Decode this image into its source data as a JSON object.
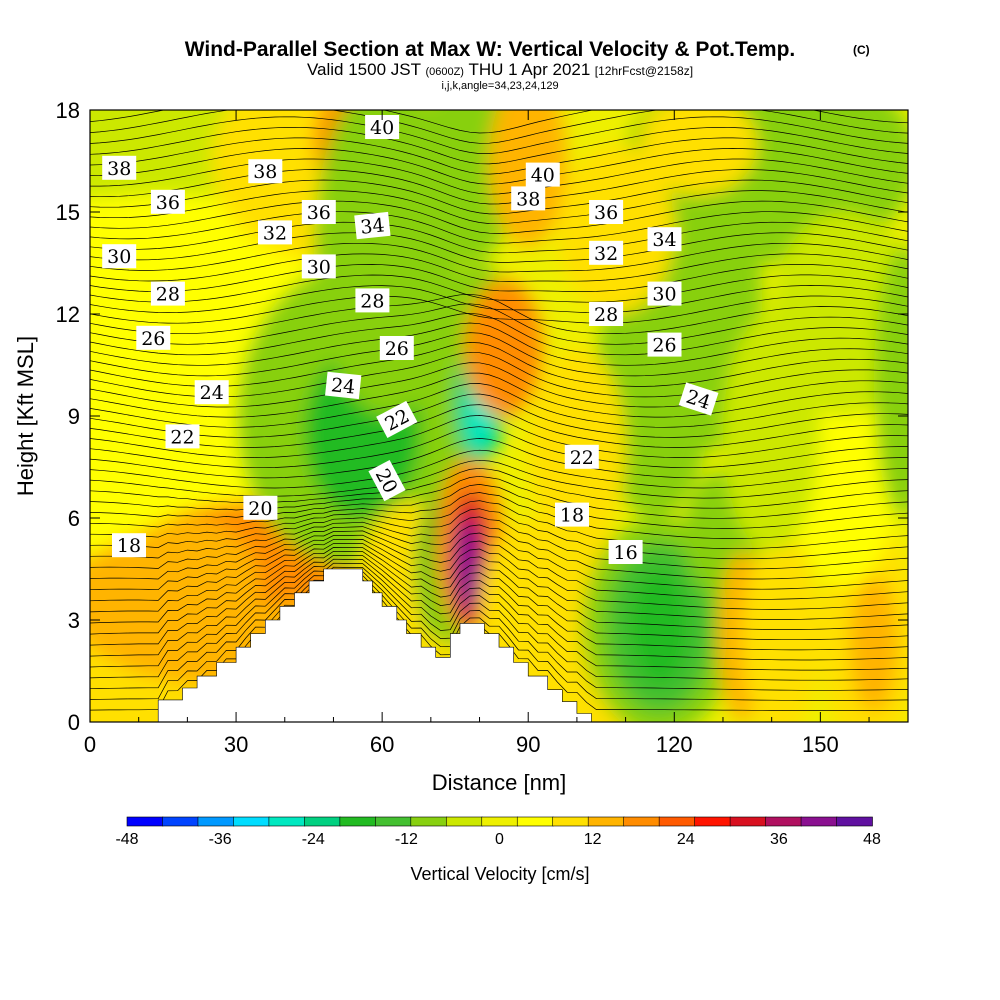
{
  "header": {
    "title": "Wind-Parallel Section at Max W: Vertical Velocity & Pot.Temp.",
    "copyright": "(C)",
    "valid_prefix": "Valid 1500 JST",
    "valid_utc": "(0600Z)",
    "valid_date": "THU 1 Apr 2021",
    "forecast": "[12hrFcst@2158z]",
    "indices": "i,j,k,angle=34,23,24,129"
  },
  "chart_data": {
    "type": "heatmap",
    "xlabel": "Distance [nm]",
    "ylabel": "Height [Kft MSL]",
    "xlim": [
      0,
      168
    ],
    "ylim": [
      0,
      18
    ],
    "x_ticks": [
      "0",
      "30",
      "60",
      "90",
      "120",
      "150"
    ],
    "y_ticks": [
      "0",
      "3",
      "6",
      "9",
      "12",
      "15",
      "18"
    ],
    "grid": false,
    "colorbar": {
      "label": "Vertical Velocity [cm/s]",
      "tick_labels": [
        "-48",
        "-36",
        "-24",
        "-12",
        "0",
        "12",
        "24",
        "36",
        "48"
      ],
      "colors": [
        "#0000ff",
        "#0044ff",
        "#0099ff",
        "#00ddff",
        "#00e8c0",
        "#00d080",
        "#22bb22",
        "#44c030",
        "#88d010",
        "#cce800",
        "#eef000",
        "#ffff00",
        "#ffe000",
        "#ffb400",
        "#ff8c00",
        "#ff5a00",
        "#ff1400",
        "#d81020",
        "#b01060",
        "#8a1090",
        "#6010a0"
      ]
    },
    "potential_temperature_labels": [
      "38",
      "36",
      "30",
      "28",
      "26",
      "24",
      "22",
      "18",
      "20",
      "38",
      "32",
      "36",
      "30",
      "40",
      "34",
      "28",
      "26",
      "24",
      "22",
      "20",
      "40",
      "38",
      "36",
      "32",
      "28",
      "22",
      "18",
      "34",
      "30",
      "26",
      "24",
      "16"
    ],
    "terrain_kft": [
      [
        0,
        0
      ],
      [
        14,
        0
      ],
      [
        14,
        0.65
      ],
      [
        19,
        0.65
      ],
      [
        19,
        1.0
      ],
      [
        22,
        1.0
      ],
      [
        22,
        1.35
      ],
      [
        26,
        1.35
      ],
      [
        26,
        1.75
      ],
      [
        30,
        1.75
      ],
      [
        30,
        2.2
      ],
      [
        33,
        2.2
      ],
      [
        33,
        2.6
      ],
      [
        36,
        2.6
      ],
      [
        36,
        3.0
      ],
      [
        39,
        3.0
      ],
      [
        39,
        3.4
      ],
      [
        42,
        3.4
      ],
      [
        42,
        3.8
      ],
      [
        45,
        3.8
      ],
      [
        45,
        4.15
      ],
      [
        48,
        4.15
      ],
      [
        48,
        4.5
      ],
      [
        56,
        4.5
      ],
      [
        56,
        4.15
      ],
      [
        58,
        4.15
      ],
      [
        58,
        3.8
      ],
      [
        60,
        3.8
      ],
      [
        60,
        3.4
      ],
      [
        63,
        3.4
      ],
      [
        63,
        3.0
      ],
      [
        65,
        3.0
      ],
      [
        65,
        2.6
      ],
      [
        68,
        2.6
      ],
      [
        68,
        2.2
      ],
      [
        71,
        2.2
      ],
      [
        71,
        1.9
      ],
      [
        74,
        1.9
      ],
      [
        74,
        2.6
      ],
      [
        76,
        2.6
      ],
      [
        76,
        2.9
      ],
      [
        81,
        2.9
      ],
      [
        81,
        2.6
      ],
      [
        84,
        2.6
      ],
      [
        84,
        2.2
      ],
      [
        87,
        2.2
      ],
      [
        87,
        1.75
      ],
      [
        90,
        1.75
      ],
      [
        90,
        1.35
      ],
      [
        94,
        1.35
      ],
      [
        94,
        0.95
      ],
      [
        97,
        0.95
      ],
      [
        97,
        0.6
      ],
      [
        100,
        0.6
      ],
      [
        100,
        0.25
      ],
      [
        103,
        0.25
      ],
      [
        103,
        0
      ],
      [
        168,
        0
      ]
    ]
  }
}
